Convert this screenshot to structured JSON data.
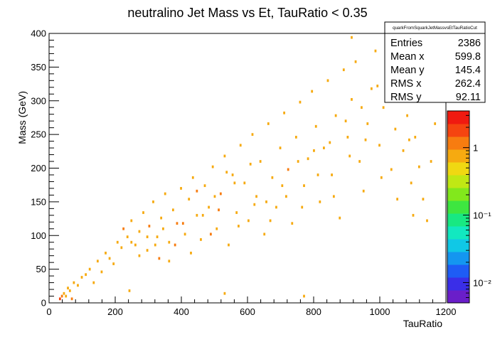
{
  "chart_data": {
    "type": "heatmap",
    "title": "neutralino Jet Mass vs Et, TauRatio < 0.35",
    "xlabel": "TauRatio",
    "ylabel": "Mass (GeV)",
    "xlim": [
      0,
      1200
    ],
    "ylim": [
      0,
      400
    ],
    "x_ticks": [
      0,
      200,
      400,
      600,
      800,
      1000,
      1200
    ],
    "y_ticks": [
      0,
      50,
      100,
      150,
      200,
      250,
      300,
      350,
      400
    ],
    "z_scale": "log",
    "z_ticks": [
      {
        "value": 0.01,
        "label": "10⁻²"
      },
      {
        "value": 0.1,
        "label": "10⁻¹"
      },
      {
        "value": 1,
        "label": "1"
      }
    ],
    "z_range": [
      0.005,
      3.5
    ],
    "palette": [
      "#6a1ec9",
      "#3a2ee8",
      "#1e5cf5",
      "#1496f0",
      "#10c8e6",
      "#12e8c0",
      "#18e882",
      "#3ee640",
      "#82e81c",
      "#c0e814",
      "#f0d812",
      "#f6aa10",
      "#f77c10",
      "#f54410",
      "#f01a10"
    ],
    "stats": {
      "name": "quarkFromSquarkJetMassvsEtTauRatioCut",
      "rows": [
        {
          "label": "Entries",
          "value": "2386"
        },
        {
          "label": "Mean x",
          "value": "599.8"
        },
        {
          "label": "Mean y",
          "value": "145.4"
        },
        {
          "label": "RMS x",
          "value": "262.4"
        },
        {
          "label": "RMS y",
          "value": "92.11"
        }
      ]
    },
    "cell_colors": {
      "low": "#f6aa10",
      "mid": "#f77c10",
      "high": "#f54410"
    },
    "bin_width": {
      "x": 6,
      "y": 4
    },
    "bins": [
      [
        30,
        4,
        3
      ],
      [
        36,
        8,
        2
      ],
      [
        42,
        12,
        1
      ],
      [
        48,
        8,
        1
      ],
      [
        54,
        20,
        1
      ],
      [
        60,
        16,
        1
      ],
      [
        66,
        4,
        2
      ],
      [
        72,
        28,
        1
      ],
      [
        84,
        24,
        1
      ],
      [
        96,
        36,
        1
      ],
      [
        108,
        40,
        1
      ],
      [
        120,
        48,
        1
      ],
      [
        132,
        28,
        1
      ],
      [
        144,
        60,
        1
      ],
      [
        156,
        44,
        1
      ],
      [
        168,
        72,
        1
      ],
      [
        180,
        64,
        1
      ],
      [
        192,
        56,
        1
      ],
      [
        204,
        88,
        1
      ],
      [
        216,
        80,
        1
      ],
      [
        222,
        108,
        2
      ],
      [
        234,
        96,
        1
      ],
      [
        246,
        120,
        1
      ],
      [
        258,
        84,
        1
      ],
      [
        270,
        104,
        1
      ],
      [
        282,
        132,
        1
      ],
      [
        294,
        76,
        1
      ],
      [
        300,
        112,
        2
      ],
      [
        312,
        148,
        1
      ],
      [
        324,
        96,
        1
      ],
      [
        336,
        124,
        1
      ],
      [
        348,
        160,
        1
      ],
      [
        360,
        88,
        1
      ],
      [
        372,
        136,
        1
      ],
      [
        384,
        116,
        2
      ],
      [
        396,
        168,
        1
      ],
      [
        408,
        100,
        1
      ],
      [
        420,
        152,
        1
      ],
      [
        432,
        184,
        1
      ],
      [
        444,
        128,
        1
      ],
      [
        456,
        92,
        1
      ],
      [
        468,
        172,
        1
      ],
      [
        480,
        140,
        1
      ],
      [
        492,
        200,
        1
      ],
      [
        504,
        108,
        1
      ],
      [
        516,
        160,
        2
      ],
      [
        528,
        216,
        1
      ],
      [
        540,
        84,
        1
      ],
      [
        552,
        188,
        1
      ],
      [
        564,
        132,
        1
      ],
      [
        576,
        232,
        1
      ],
      [
        588,
        176,
        1
      ],
      [
        600,
        120,
        1
      ],
      [
        612,
        248,
        1
      ],
      [
        624,
        156,
        1
      ],
      [
        636,
        208,
        1
      ],
      [
        648,
        100,
        1
      ],
      [
        660,
        264,
        1
      ],
      [
        672,
        184,
        1
      ],
      [
        684,
        140,
        1
      ],
      [
        696,
        228,
        1
      ],
      [
        708,
        280,
        1
      ],
      [
        720,
        196,
        2
      ],
      [
        732,
        116,
        1
      ],
      [
        744,
        244,
        1
      ],
      [
        756,
        296,
        1
      ],
      [
        768,
        172,
        1
      ],
      [
        780,
        212,
        1
      ],
      [
        792,
        312,
        1
      ],
      [
        804,
        260,
        1
      ],
      [
        816,
        148,
        1
      ],
      [
        828,
        228,
        1
      ],
      [
        840,
        328,
        1
      ],
      [
        852,
        188,
        1
      ],
      [
        864,
        276,
        1
      ],
      [
        876,
        124,
        1
      ],
      [
        888,
        344,
        1
      ],
      [
        900,
        244,
        1
      ],
      [
        912,
        300,
        1
      ],
      [
        924,
        356,
        1
      ],
      [
        936,
        208,
        1
      ],
      [
        948,
        164,
        1
      ],
      [
        960,
        264,
        1
      ],
      [
        972,
        316,
        1
      ],
      [
        984,
        372,
        1
      ],
      [
        996,
        232,
        1
      ],
      [
        1008,
        288,
        1
      ],
      [
        1020,
        340,
        1
      ],
      [
        1032,
        196,
        1
      ],
      [
        1044,
        256,
        1
      ],
      [
        1056,
        304,
        1
      ],
      [
        1068,
        224,
        1
      ],
      [
        1080,
        276,
        1
      ],
      [
        1092,
        176,
        1
      ],
      [
        1104,
        244,
        1
      ],
      [
        1116,
        200,
        1
      ],
      [
        1128,
        152,
        1
      ],
      [
        1140,
        120,
        1
      ],
      [
        1152,
        208,
        1
      ],
      [
        1164,
        264,
        1
      ],
      [
        912,
        392,
        1
      ],
      [
        768,
        8,
        1
      ],
      [
        528,
        12,
        1
      ],
      [
        240,
        16,
        1
      ],
      [
        330,
        64,
        2
      ],
      [
        378,
        84,
        2
      ],
      [
        402,
        116,
        2
      ],
      [
        444,
        164,
        2
      ],
      [
        486,
        100,
        2
      ],
      [
        510,
        136,
        2
      ],
      [
        558,
        176,
        1
      ],
      [
        606,
        204,
        1
      ],
      [
        654,
        148,
        1
      ],
      [
        702,
        172,
        1
      ],
      [
        750,
        208,
        1
      ],
      [
        798,
        224,
        1
      ],
      [
        846,
        236,
        1
      ],
      [
        894,
        268,
        1
      ],
      [
        942,
        288,
        1
      ],
      [
        990,
        320,
        1
      ],
      [
        1038,
        356,
        1
      ],
      [
        1086,
        240,
        1
      ],
      [
        360,
        60,
        1
      ],
      [
        342,
        108,
        1
      ],
      [
        318,
        84,
        1
      ],
      [
        294,
        96,
        1
      ],
      [
        270,
        68,
        1
      ],
      [
        246,
        88,
        1
      ],
      [
        426,
        72,
        1
      ],
      [
        462,
        128,
        1
      ],
      [
        498,
        156,
        1
      ],
      [
        534,
        192,
        1
      ],
      [
        570,
        112,
        1
      ],
      [
        618,
        144,
        1
      ],
      [
        666,
        120,
        1
      ],
      [
        714,
        156,
        1
      ],
      [
        762,
        140,
        1
      ],
      [
        810,
        188,
        1
      ],
      [
        858,
        156,
        1
      ],
      [
        906,
        216,
        1
      ],
      [
        954,
        240,
        1
      ],
      [
        1002,
        184,
        1
      ],
      [
        1050,
        152,
        1
      ],
      [
        1098,
        128,
        1
      ]
    ]
  }
}
